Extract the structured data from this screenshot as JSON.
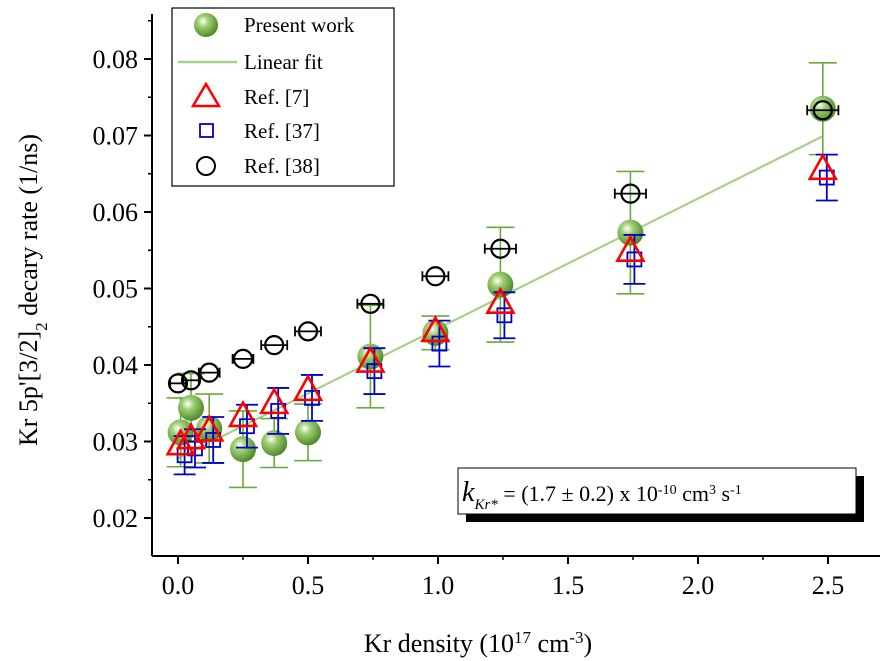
{
  "chart_data": {
    "type": "scatter",
    "xlabel_main": "Kr density (10",
    "xlabel_sup1": "17",
    "xlabel_mid": " cm",
    "xlabel_sup2": "-3",
    "xlabel_end": ")",
    "ylabel_main": "Kr 5p'[3/2]",
    "ylabel_sub": "2",
    "ylabel_end": " decary rate (1/ns)",
    "xlim": [
      -0.1,
      2.62
    ],
    "ylim": [
      0.0155,
      0.0865
    ],
    "xticks": [
      0.0,
      0.5,
      1.0,
      1.5,
      2.0,
      2.5
    ],
    "xtick_labels": [
      "0.0",
      "0.5",
      "1.0",
      "1.5",
      "2.0",
      "2.5"
    ],
    "yticks": [
      0.02,
      0.03,
      0.04,
      0.05,
      0.06,
      0.07,
      0.08
    ],
    "ytick_labels": [
      "0.02",
      "0.03",
      "0.04",
      "0.05",
      "0.06",
      "0.07",
      "0.08"
    ],
    "legend_position": "top-left",
    "series": [
      {
        "name": "Present work",
        "marker": "sphere",
        "color": "#6aaa3a",
        "errorbar_color": "#6aaa3a",
        "x": [
          0.01,
          0.05,
          0.12,
          0.25,
          0.37,
          0.5,
          0.74,
          0.99,
          1.24,
          1.74,
          2.48
        ],
        "y": [
          0.0312,
          0.0344,
          0.0317,
          0.029,
          0.0298,
          0.0312,
          0.0411,
          0.0442,
          0.0505,
          0.0573,
          0.0735
        ],
        "yerr": [
          0.0045,
          0.0045,
          0.0045,
          0.005,
          0.0032,
          0.0037,
          0.0067,
          0.0022,
          0.0075,
          0.008,
          0.006
        ]
      },
      {
        "name": "Linear fit",
        "type": "line",
        "color": "#a8d08d",
        "x": [
          0.0,
          2.48
        ],
        "y": [
          0.0278,
          0.0699
        ]
      },
      {
        "name": "Ref. [7]",
        "marker": "triangle",
        "color": "#ff0000",
        "x": [
          0.01,
          0.05,
          0.12,
          0.25,
          0.37,
          0.5,
          0.74,
          0.99,
          1.24,
          1.74,
          2.48
        ],
        "y": [
          0.0297,
          0.0305,
          0.0315,
          0.0334,
          0.0351,
          0.0368,
          0.0405,
          0.0445,
          0.0482,
          0.055,
          0.0657
        ]
      },
      {
        "name": "Ref. [37]",
        "marker": "square",
        "color": "#0000cc",
        "errorbar_color": "#0000cc",
        "x": [
          0.01,
          0.05,
          0.12,
          0.25,
          0.37,
          0.5,
          0.74,
          0.99,
          1.24,
          1.74,
          2.48
        ],
        "y": [
          0.0282,
          0.0291,
          0.0302,
          0.032,
          0.034,
          0.0357,
          0.0392,
          0.0428,
          0.0465,
          0.0538,
          0.0645
        ],
        "yerr": [
          0.0025,
          0.0025,
          0.003,
          0.0028,
          0.003,
          0.003,
          0.003,
          0.003,
          0.003,
          0.0032,
          0.003
        ]
      },
      {
        "name": "Ref. [38]",
        "marker": "circle",
        "color": "#000000",
        "errorbar_color": "#000000",
        "x": [
          0.0,
          0.05,
          0.12,
          0.25,
          0.37,
          0.5,
          0.74,
          0.99,
          1.24,
          1.74,
          2.48
        ],
        "y": [
          0.0376,
          0.038,
          0.039,
          0.0408,
          0.0426,
          0.0444,
          0.048,
          0.0516,
          0.0552,
          0.0624,
          0.0733
        ],
        "xerr": [
          0.03,
          0.03,
          0.04,
          0.04,
          0.05,
          0.05,
          0.05,
          0.05,
          0.06,
          0.06,
          0.06
        ]
      }
    ],
    "annotation": {
      "k_main": "k",
      "k_sub": "Kr*",
      "value_text": " = (1.7 ± 0.2) x 10",
      "exp1": "-10",
      "unit_text": " cm",
      "exp2": "3",
      "unit_text2": " s",
      "exp3": "-1"
    }
  }
}
